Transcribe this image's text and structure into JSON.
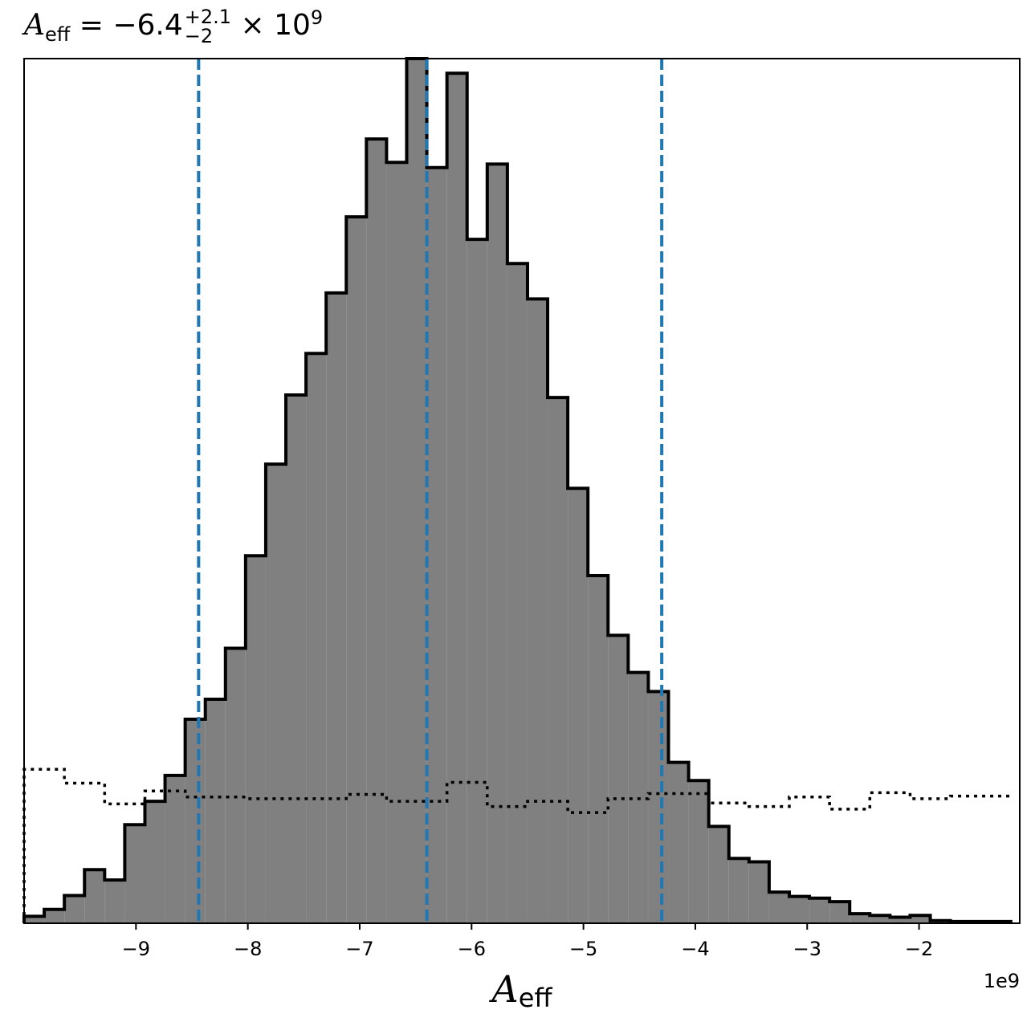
{
  "title": {
    "symbol": "A",
    "subscript": "eff",
    "equals": " = −6.4",
    "sup": "+2.1",
    "sub": "−2",
    "times": " × 10",
    "exp": "9"
  },
  "chart_data": {
    "type": "histogram",
    "xlabel": {
      "symbol": "A",
      "subscript": "eff"
    },
    "offset_text": "1e9",
    "xlim": [
      -10.0,
      -1.1
    ],
    "ylim": [
      0,
      1.0
    ],
    "x_ticks": [
      -9,
      -8,
      -7,
      -6,
      -5,
      -4,
      -3,
      -2
    ],
    "x_tick_labels": [
      "−9",
      "−8",
      "−7",
      "−6",
      "−5",
      "−4",
      "−3",
      "−2"
    ],
    "bin_edges": [
      -10.0,
      -9.82,
      -9.64,
      -9.46,
      -9.28,
      -9.1,
      -8.92,
      -8.74,
      -8.56,
      -8.38,
      -8.2,
      -8.02,
      -7.84,
      -7.66,
      -7.48,
      -7.3,
      -7.12,
      -6.94,
      -6.76,
      -6.58,
      -6.4,
      -6.22,
      -6.04,
      -5.86,
      -5.68,
      -5.5,
      -5.32,
      -5.14,
      -4.96,
      -4.78,
      -4.6,
      -4.42,
      -4.24,
      -4.06,
      -3.88,
      -3.7,
      -3.52,
      -3.34,
      -3.16,
      -2.98,
      -2.8,
      -2.62,
      -2.44,
      -2.26,
      -2.08,
      -1.9,
      -1.72,
      -1.54,
      -1.36,
      -1.18
    ],
    "posterior_counts": [
      0.008,
      0.016,
      0.032,
      0.062,
      0.05,
      0.114,
      0.141,
      0.171,
      0.236,
      0.259,
      0.318,
      0.425,
      0.531,
      0.611,
      0.659,
      0.729,
      0.817,
      0.907,
      0.88,
      1.0,
      0.874,
      0.983,
      0.791,
      0.878,
      0.763,
      0.722,
      0.608,
      0.503,
      0.402,
      0.333,
      0.29,
      0.268,
      0.186,
      0.165,
      0.112,
      0.075,
      0.071,
      0.036,
      0.031,
      0.029,
      0.025,
      0.011,
      0.009,
      0.007,
      0.009,
      0.003,
      0.002,
      0.002,
      0.002
    ],
    "prior_counts": [
      0.178,
      0.178,
      0.162,
      0.162,
      0.138,
      0.138,
      0.153,
      0.153,
      0.146,
      0.146,
      0.146,
      0.144,
      0.144,
      0.144,
      0.144,
      0.144,
      0.149,
      0.149,
      0.141,
      0.141,
      0.141,
      0.163,
      0.163,
      0.135,
      0.135,
      0.141,
      0.141,
      0.128,
      0.128,
      0.144,
      0.144,
      0.15,
      0.15,
      0.15,
      0.139,
      0.139,
      0.135,
      0.135,
      0.146,
      0.146,
      0.132,
      0.132,
      0.151,
      0.151,
      0.144,
      0.144,
      0.147,
      0.147,
      0.147
    ],
    "prior_edge_line": true,
    "vlines": [
      -8.44,
      -6.4,
      -4.3
    ],
    "colors": {
      "posterior_fill": "#808080",
      "posterior_edge": "#000000",
      "prior_line": "#000000",
      "vline": "#1f77b4"
    },
    "grid": false
  }
}
